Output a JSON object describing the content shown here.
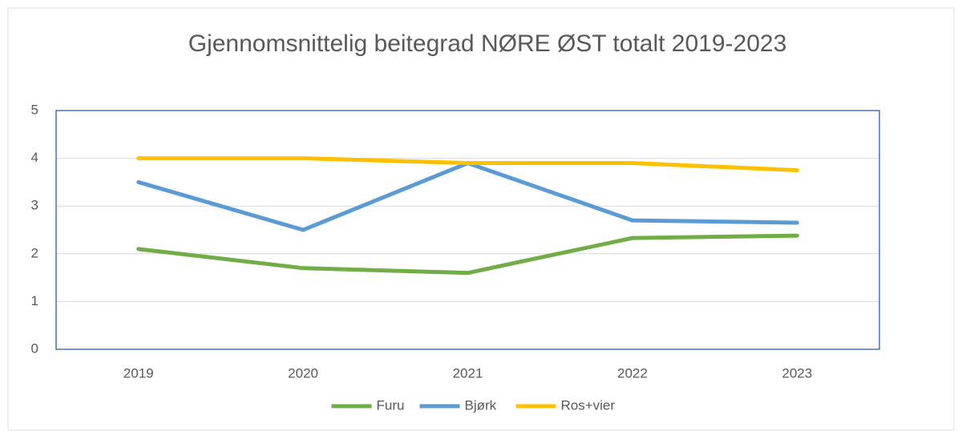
{
  "chart_data": {
    "type": "line",
    "title": "Gjennomsnittelig beitegrad NØRE ØST totalt 2019-2023",
    "categories": [
      "2019",
      "2020",
      "2021",
      "2022",
      "2023"
    ],
    "series": [
      {
        "name": "Furu",
        "color": "#70ad47",
        "values": [
          2.1,
          1.7,
          1.6,
          2.33,
          2.38
        ]
      },
      {
        "name": "Bjørk",
        "color": "#5b9bd5",
        "values": [
          3.5,
          2.5,
          3.9,
          2.7,
          2.65
        ]
      },
      {
        "name": "Ros+vier",
        "color": "#ffc000",
        "values": [
          4.0,
          4.0,
          3.9,
          3.9,
          3.75
        ]
      }
    ],
    "ylim": [
      0,
      5
    ],
    "yticks": [
      0,
      1,
      2,
      3,
      4,
      5
    ],
    "grid": true,
    "legend": "bottom"
  }
}
